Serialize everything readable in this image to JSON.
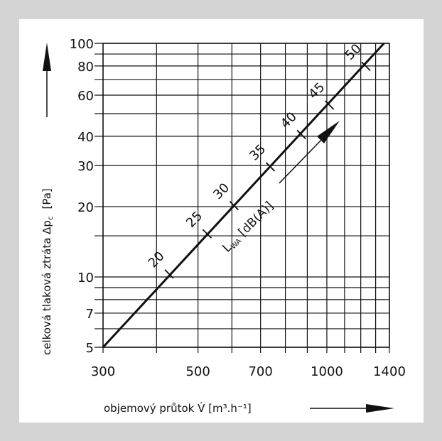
{
  "chart_data": {
    "type": "line",
    "x_scale": "log",
    "y_scale": "log",
    "xlim": [
      300,
      1400
    ],
    "ylim": [
      5,
      100
    ],
    "x_ticks": [
      300,
      500,
      700,
      1000,
      1400
    ],
    "x_tick_labels": [
      "300",
      "500",
      "700",
      "1000",
      "1400"
    ],
    "x_gridlines": [
      300,
      400,
      500,
      600,
      700,
      800,
      900,
      1000,
      1100,
      1200,
      1300,
      1400
    ],
    "y_ticks": [
      5,
      7,
      10,
      20,
      30,
      40,
      60,
      80,
      100
    ],
    "y_tick_labels": [
      "5",
      "7",
      "10",
      "20",
      "30",
      "40",
      "60",
      "80",
      "100"
    ],
    "y_gridlines": [
      5,
      6,
      7,
      8,
      9,
      10,
      15,
      20,
      30,
      40,
      50,
      60,
      70,
      80,
      90,
      100
    ],
    "grid": true,
    "xlabel": "objemový průtok V̇ [m³.h⁻¹]",
    "ylabel": "celková tlaková ztráta Δpc [Pa]",
    "series": [
      {
        "x": [
          300,
          1360
        ],
        "y": [
          5,
          100
        ]
      }
    ],
    "sound_marks": [
      {
        "label": "20",
        "x": 428,
        "y": 10.3
      },
      {
        "label": "25",
        "x": 525,
        "y": 15.3
      },
      {
        "label": "30",
        "x": 607,
        "y": 20.2
      },
      {
        "label": "35",
        "x": 738,
        "y": 29.6
      },
      {
        "label": "40",
        "x": 872,
        "y": 40.7
      },
      {
        "label": "45",
        "x": 1014,
        "y": 54.4
      },
      {
        "label": "50",
        "x": 1234,
        "y": 79.7
      }
    ],
    "annotation": {
      "label": "L",
      "subscript": "WA",
      "unit": "[dB(A)]"
    }
  }
}
